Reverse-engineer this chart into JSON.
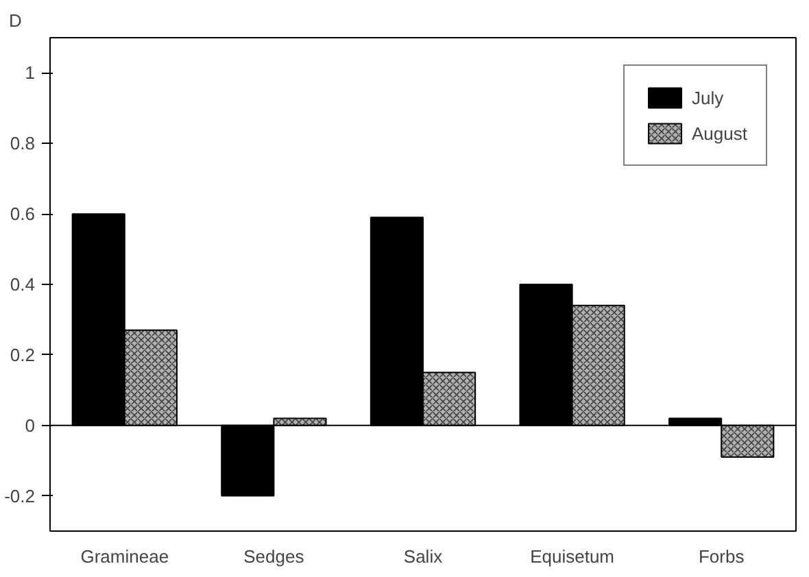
{
  "chart_data": {
    "type": "bar",
    "ylabel": "D",
    "categories": [
      "Gramineae",
      "Sedges",
      "Salix",
      "Equisetum",
      "Forbs"
    ],
    "series": [
      {
        "name": "July",
        "color": "#000000",
        "values": [
          0.6,
          -0.2,
          0.59,
          0.4,
          0.02
        ]
      },
      {
        "name": "August",
        "color": "#b0b0b0",
        "values": [
          0.27,
          0.02,
          0.15,
          0.34,
          -0.09
        ]
      }
    ],
    "ylim": [
      -0.3,
      1.1
    ],
    "yticks": [
      {
        "value": -0.2,
        "label": "-0.2"
      },
      0,
      {
        "value": 0.2,
        "label": "0.2"
      },
      {
        "value": 0.4,
        "label": "0.4"
      },
      {
        "value": 0.6,
        "label": "0.6"
      },
      {
        "value": 0.8,
        "label": "0.8"
      },
      1
    ],
    "ref_lines": [
      {
        "axis": "y",
        "value": 0,
        "color": "#000000"
      }
    ],
    "legend": "top right",
    "grid": false
  }
}
